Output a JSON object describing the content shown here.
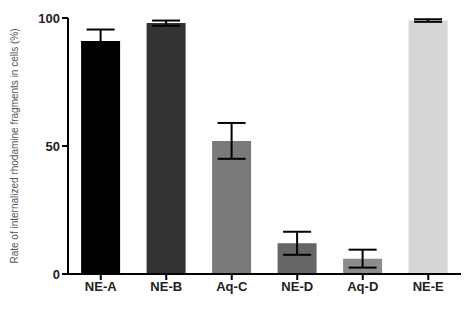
{
  "chart_data": {
    "type": "bar",
    "y_label": "Rate of internalized rhodamine fragments in cells (%)",
    "categories": [
      "NE-A",
      "NE-B",
      "Aq-C",
      "NE-D",
      "Aq-D",
      "NE-E"
    ],
    "values": [
      91,
      98,
      52,
      12,
      6,
      99
    ],
    "error": [
      4.5,
      1,
      7,
      4.5,
      3.5,
      0.5
    ],
    "colors": [
      "#000000",
      "#333333",
      "#7a7a7a",
      "#666666",
      "#8c8c8c",
      "#d6d6d6"
    ],
    "ylim": [
      0,
      100
    ],
    "yticks": [
      0,
      50,
      100
    ],
    "grid": false
  }
}
